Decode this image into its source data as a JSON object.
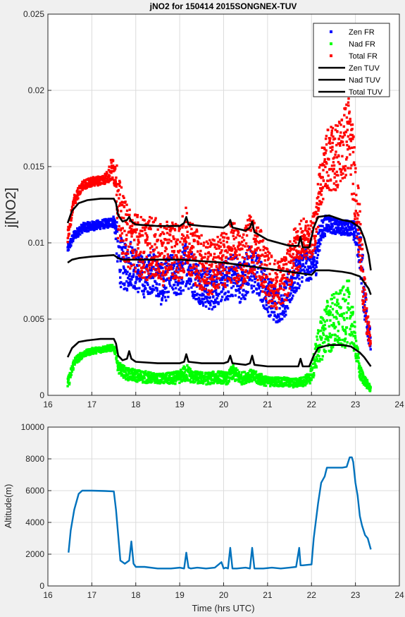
{
  "figure": {
    "background": "#f0f0f0"
  },
  "chart_data": [
    {
      "type": "scatter",
      "title": "jNO2 for 150414 2015SONGNEX-TUV",
      "xlabel": "",
      "ylabel": "j[NO2]",
      "xlim": [
        16,
        24
      ],
      "ylim": [
        0,
        0.025
      ],
      "xticks": [
        16,
        17,
        18,
        19,
        20,
        21,
        22,
        23,
        24
      ],
      "xtick_labels": [
        "16",
        "17",
        "18",
        "19",
        "20",
        "21",
        "22",
        "23",
        "24"
      ],
      "yticks": [
        0,
        0.005,
        0.01,
        0.015,
        0.02,
        0.025
      ],
      "ytick_labels": [
        "0",
        "0.005",
        "0.01",
        "0.015",
        "0.02",
        "0.025"
      ],
      "grid": true,
      "legend_position": "top-right",
      "series": [
        {
          "name": "Zen FR",
          "kind": "points",
          "color": "#0000ff",
          "x": [
            16.45,
            16.6,
            16.8,
            17.0,
            17.2,
            17.4,
            17.5,
            17.55,
            17.6,
            17.7,
            17.8,
            17.9,
            18.0,
            18.2,
            18.4,
            18.6,
            18.8,
            19.0,
            19.15,
            19.3,
            19.5,
            19.7,
            19.9,
            20.1,
            20.2,
            20.4,
            20.6,
            20.8,
            21.0,
            21.2,
            21.4,
            21.6,
            21.8,
            22.0,
            22.1,
            22.2,
            22.35,
            22.5,
            22.7,
            22.9,
            23.0,
            23.1,
            23.2,
            23.35
          ],
          "y": [
            0.0096,
            0.0105,
            0.011,
            0.0111,
            0.0112,
            0.0113,
            0.0114,
            0.0108,
            0.0092,
            0.0085,
            0.0083,
            0.0088,
            0.0082,
            0.0077,
            0.0082,
            0.0072,
            0.008,
            0.0076,
            0.0088,
            0.0079,
            0.0072,
            0.0069,
            0.0073,
            0.0076,
            0.008,
            0.0074,
            0.0083,
            0.0078,
            0.0066,
            0.0059,
            0.0063,
            0.0077,
            0.0086,
            0.0084,
            0.0089,
            0.0106,
            0.0113,
            0.0111,
            0.011,
            0.011,
            0.0106,
            0.0098,
            0.0066,
            0.0033
          ],
          "spread": [
            0.0003,
            0.0003,
            0.0003,
            0.0003,
            0.0003,
            0.0003,
            0.0004,
            0.0008,
            0.0018,
            0.0016,
            0.0015,
            0.0016,
            0.0014,
            0.0013,
            0.0014,
            0.0014,
            0.0013,
            0.0013,
            0.0016,
            0.0015,
            0.0013,
            0.0014,
            0.0013,
            0.0014,
            0.0015,
            0.0014,
            0.0016,
            0.0014,
            0.0013,
            0.0012,
            0.0012,
            0.0013,
            0.0011,
            0.0009,
            0.0011,
            0.0008,
            0.0006,
            0.0005,
            0.0005,
            0.0005,
            0.0008,
            0.0015,
            0.0017,
            0.0006
          ]
        },
        {
          "name": "Nad FR",
          "kind": "points",
          "color": "#00ff00",
          "x": [
            16.45,
            16.6,
            16.8,
            17.0,
            17.2,
            17.4,
            17.5,
            17.55,
            17.6,
            17.8,
            18.0,
            18.2,
            18.5,
            18.8,
            19.0,
            19.15,
            19.3,
            19.6,
            19.9,
            20.1,
            20.2,
            20.4,
            20.6,
            20.8,
            21.0,
            21.3,
            21.6,
            21.8,
            21.95,
            22.05,
            22.1,
            22.2,
            22.35,
            22.5,
            22.7,
            22.85,
            22.9,
            23.0,
            23.1,
            23.25,
            23.35
          ],
          "y": [
            0.0007,
            0.0022,
            0.0027,
            0.0029,
            0.003,
            0.0031,
            0.0031,
            0.0028,
            0.0018,
            0.0014,
            0.0013,
            0.0012,
            0.0011,
            0.0011,
            0.0012,
            0.0015,
            0.0012,
            0.0011,
            0.0012,
            0.0011,
            0.0015,
            0.0011,
            0.0013,
            0.0011,
            0.0009,
            0.0009,
            0.0008,
            0.0009,
            0.0011,
            0.0019,
            0.0027,
            0.0036,
            0.0045,
            0.0048,
            0.005,
            0.0055,
            0.005,
            0.0035,
            0.0015,
            0.0008,
            0.0004
          ],
          "spread": [
            0.0004,
            0.0003,
            0.0002,
            0.0002,
            0.0002,
            0.0002,
            0.0002,
            0.0003,
            0.0004,
            0.0004,
            0.0004,
            0.0004,
            0.0003,
            0.0004,
            0.0004,
            0.0006,
            0.0004,
            0.0004,
            0.0004,
            0.0004,
            0.0005,
            0.0004,
            0.0004,
            0.0004,
            0.0003,
            0.0003,
            0.0003,
            0.0003,
            0.0004,
            0.0008,
            0.001,
            0.0014,
            0.0018,
            0.002,
            0.002,
            0.0022,
            0.0016,
            0.001,
            0.0005,
            0.0003,
            0.0002
          ]
        },
        {
          "name": "Total FR",
          "kind": "points",
          "color": "#ff0000",
          "x": [
            16.45,
            16.6,
            16.8,
            17.0,
            17.2,
            17.35,
            17.45,
            17.55,
            17.6,
            17.8,
            18.0,
            18.2,
            18.4,
            18.6,
            18.8,
            19.0,
            19.15,
            19.3,
            19.5,
            19.7,
            19.9,
            20.1,
            20.2,
            20.4,
            20.6,
            20.8,
            21.0,
            21.2,
            21.4,
            21.6,
            21.8,
            22.0,
            22.1,
            22.2,
            22.35,
            22.5,
            22.7,
            22.85,
            22.95,
            23.05,
            23.15,
            23.25,
            23.35
          ],
          "y": [
            0.0104,
            0.0128,
            0.0138,
            0.014,
            0.0141,
            0.0143,
            0.0148,
            0.0145,
            0.0122,
            0.0104,
            0.0101,
            0.0095,
            0.0098,
            0.0091,
            0.0097,
            0.0092,
            0.0105,
            0.0094,
            0.0087,
            0.0083,
            0.0088,
            0.009,
            0.0095,
            0.0088,
            0.01,
            0.0093,
            0.0078,
            0.0072,
            0.0076,
            0.0093,
            0.0102,
            0.0102,
            0.0112,
            0.014,
            0.0155,
            0.0155,
            0.0162,
            0.0172,
            0.015,
            0.0122,
            0.0085,
            0.005,
            0.0034
          ],
          "spread": [
            0.0004,
            0.0004,
            0.0003,
            0.0003,
            0.0003,
            0.0004,
            0.0008,
            0.001,
            0.0022,
            0.0021,
            0.002,
            0.0021,
            0.002,
            0.002,
            0.0019,
            0.0019,
            0.0021,
            0.002,
            0.0019,
            0.0019,
            0.0018,
            0.0019,
            0.002,
            0.0019,
            0.002,
            0.0019,
            0.0018,
            0.0016,
            0.0016,
            0.0017,
            0.0014,
            0.0012,
            0.0014,
            0.0018,
            0.002,
            0.0022,
            0.0024,
            0.0026,
            0.0025,
            0.0022,
            0.002,
            0.0012,
            0.0004
          ]
        },
        {
          "name": "Zen TUV",
          "kind": "line",
          "color": "#000000",
          "x": [
            16.45,
            16.55,
            16.7,
            16.9,
            17.2,
            17.5,
            17.55,
            17.6,
            17.7,
            17.8,
            17.85,
            17.9,
            18.0,
            18.5,
            19.0,
            19.1,
            19.15,
            19.2,
            19.5,
            20.0,
            20.1,
            20.15,
            20.2,
            20.5,
            20.6,
            20.65,
            20.7,
            21.0,
            21.5,
            21.7,
            21.75,
            21.8,
            21.95,
            22.05,
            22.15,
            22.4,
            22.7,
            22.9,
            23.0,
            23.1,
            23.2,
            23.3,
            23.35
          ],
          "y": [
            0.0113,
            0.0121,
            0.0126,
            0.0128,
            0.0129,
            0.0129,
            0.0126,
            0.0118,
            0.0114,
            0.0115,
            0.0117,
            0.0114,
            0.0112,
            0.0111,
            0.0111,
            0.0113,
            0.0117,
            0.0112,
            0.0111,
            0.011,
            0.0112,
            0.0115,
            0.011,
            0.0108,
            0.011,
            0.0114,
            0.0107,
            0.0102,
            0.0098,
            0.0098,
            0.0104,
            0.0097,
            0.0097,
            0.011,
            0.0117,
            0.0118,
            0.0115,
            0.0114,
            0.0112,
            0.011,
            0.0103,
            0.0092,
            0.0082
          ]
        },
        {
          "name": "Nad TUV",
          "kind": "line",
          "color": "#000000",
          "x": [
            16.45,
            16.55,
            16.7,
            17.0,
            17.5,
            17.55,
            17.6,
            17.7,
            18.0,
            18.5,
            19.0,
            19.5,
            20.0,
            20.5,
            21.0,
            21.5,
            22.0,
            22.1,
            22.4,
            22.7,
            22.9,
            23.0,
            23.1,
            23.2,
            23.3,
            23.35
          ],
          "y": [
            0.0087,
            0.0089,
            0.009,
            0.0091,
            0.0092,
            0.0091,
            0.009,
            0.0089,
            0.0089,
            0.0089,
            0.0089,
            0.0088,
            0.0087,
            0.0085,
            0.0083,
            0.0081,
            0.0079,
            0.0082,
            0.0082,
            0.0081,
            0.008,
            0.0079,
            0.0078,
            0.0074,
            0.007,
            0.0066
          ]
        },
        {
          "name": "Total TUV",
          "kind": "line",
          "color": "#000000",
          "x": [
            16.45,
            16.55,
            16.7,
            16.9,
            17.2,
            17.5,
            17.55,
            17.6,
            17.7,
            17.8,
            17.85,
            17.9,
            18.0,
            18.5,
            19.0,
            19.1,
            19.15,
            19.2,
            19.5,
            20.0,
            20.1,
            20.15,
            20.2,
            20.5,
            20.6,
            20.65,
            20.7,
            21.0,
            21.5,
            21.7,
            21.75,
            21.8,
            21.95,
            22.05,
            22.15,
            22.4,
            22.7,
            22.9,
            23.0,
            23.1,
            23.2,
            23.3,
            23.35
          ],
          "y": [
            0.0025,
            0.0031,
            0.0035,
            0.0036,
            0.0037,
            0.0037,
            0.0034,
            0.0026,
            0.0023,
            0.0024,
            0.0029,
            0.0024,
            0.0022,
            0.0021,
            0.0021,
            0.0022,
            0.0027,
            0.0022,
            0.0021,
            0.0021,
            0.0022,
            0.0026,
            0.0021,
            0.002,
            0.0021,
            0.0026,
            0.002,
            0.0019,
            0.0019,
            0.0019,
            0.0024,
            0.0019,
            0.0019,
            0.0026,
            0.0031,
            0.0033,
            0.0033,
            0.0032,
            0.003,
            0.0028,
            0.0025,
            0.0021,
            0.0019
          ]
        }
      ]
    },
    {
      "type": "line",
      "title": "",
      "xlabel": "Time (hrs UTC)",
      "ylabel": "Altitude(m)",
      "xlim": [
        16,
        24
      ],
      "ylim": [
        0,
        10000
      ],
      "xticks": [
        16,
        17,
        18,
        19,
        20,
        21,
        22,
        23,
        24
      ],
      "xtick_labels": [
        "16",
        "17",
        "18",
        "19",
        "20",
        "21",
        "22",
        "23",
        "24"
      ],
      "yticks": [
        0,
        2000,
        4000,
        6000,
        8000,
        10000
      ],
      "ytick_labels": [
        "0",
        "2000",
        "4000",
        "6000",
        "8000",
        "10000"
      ],
      "grid": true,
      "series": [
        {
          "color": "#0072bd",
          "x": [
            16.47,
            16.52,
            16.6,
            16.7,
            16.78,
            17.0,
            17.3,
            17.5,
            17.55,
            17.6,
            17.65,
            17.75,
            17.85,
            17.9,
            17.95,
            18.0,
            18.2,
            18.5,
            18.8,
            19.0,
            19.1,
            19.15,
            19.2,
            19.25,
            19.4,
            19.6,
            19.8,
            19.95,
            20.0,
            20.05,
            20.1,
            20.15,
            20.2,
            20.3,
            20.5,
            20.6,
            20.65,
            20.7,
            20.9,
            21.1,
            21.3,
            21.5,
            21.65,
            21.72,
            21.75,
            21.8,
            22.0,
            22.05,
            22.15,
            22.22,
            22.3,
            22.35,
            22.5,
            22.7,
            22.8,
            22.87,
            22.92,
            22.95,
            23.0,
            23.05,
            23.1,
            23.15,
            23.22,
            23.28,
            23.35
          ],
          "y": [
            2100,
            3500,
            4800,
            5800,
            6000,
            6000,
            5980,
            5950,
            4800,
            3200,
            1600,
            1400,
            1600,
            2800,
            1400,
            1200,
            1200,
            1100,
            1100,
            1150,
            1100,
            2100,
            1150,
            1100,
            1150,
            1100,
            1150,
            1500,
            1100,
            1150,
            1100,
            2400,
            1100,
            1100,
            1150,
            1100,
            2400,
            1100,
            1100,
            1150,
            1100,
            1150,
            1200,
            2400,
            1300,
            1300,
            1350,
            3000,
            5200,
            6500,
            6900,
            7450,
            7450,
            7450,
            7500,
            8100,
            8100,
            7800,
            6500,
            5700,
            4400,
            3800,
            3200,
            3000,
            2300
          ]
        }
      ]
    }
  ]
}
